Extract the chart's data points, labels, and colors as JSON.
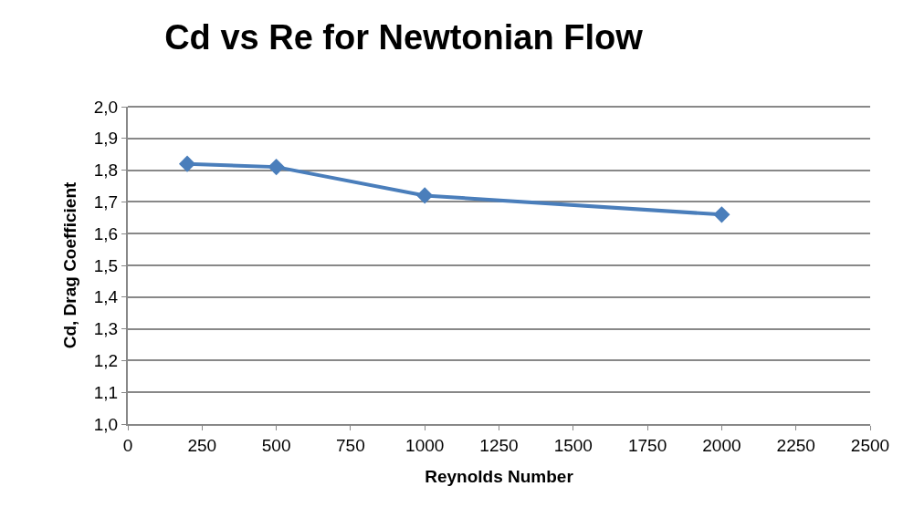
{
  "chart_data": {
    "type": "line",
    "title": "Cd vs Re for Newtonian Flow",
    "xlabel": "Reynolds Number",
    "ylabel": "Cd, Drag Coefficient",
    "x": [
      200,
      500,
      1000,
      2000
    ],
    "series": [
      {
        "color": "#4a7ebb",
        "values": [
          1.82,
          1.81,
          1.72,
          1.66
        ]
      }
    ],
    "xlim": [
      0,
      2500
    ],
    "xticks": [
      0,
      250,
      500,
      750,
      1000,
      1250,
      1500,
      1750,
      2000,
      2250,
      2500
    ],
    "ylim": [
      1.0,
      2.0
    ],
    "yticks": [
      {
        "value": 1.0,
        "label": "1,0"
      },
      {
        "value": 1.1,
        "label": "1,1"
      },
      {
        "value": 1.2,
        "label": "1,2"
      },
      {
        "value": 1.3,
        "label": "1,3"
      },
      {
        "value": 1.4,
        "label": "1,4"
      },
      {
        "value": 1.5,
        "label": "1,5"
      },
      {
        "value": 1.6,
        "label": "1,6"
      },
      {
        "value": 1.7,
        "label": "1,7"
      },
      {
        "value": 1.8,
        "label": "1,8"
      },
      {
        "value": 1.9,
        "label": "1,9"
      },
      {
        "value": 2.0,
        "label": "2,0"
      }
    ],
    "grid": "y",
    "marker": "diamond",
    "line_style": "solid"
  }
}
